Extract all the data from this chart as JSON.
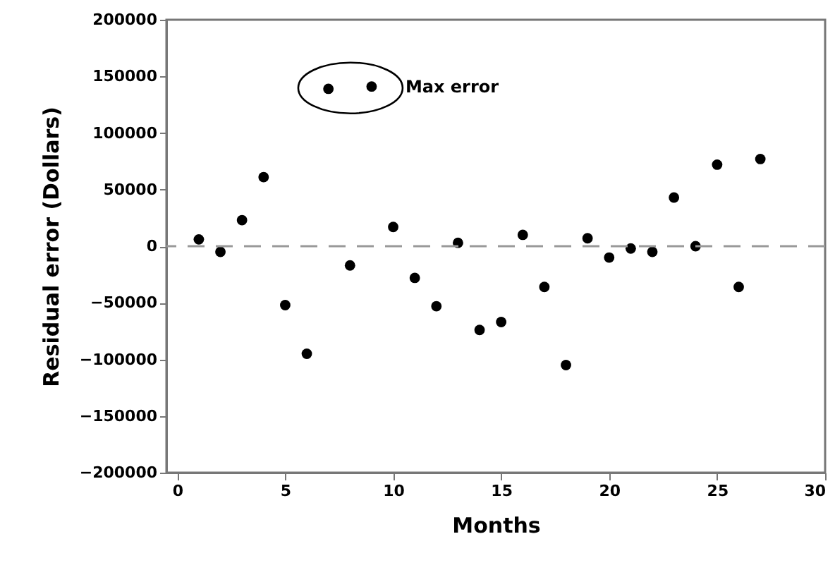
{
  "chart_data": {
    "type": "scatter",
    "xlabel": "Months",
    "ylabel": "Residual error (Dollars)",
    "x": [
      1,
      2,
      3,
      4,
      5,
      6,
      7,
      8,
      9,
      10,
      11,
      12,
      13,
      14,
      15,
      16,
      17,
      18,
      19,
      20,
      21,
      22,
      23,
      24,
      25,
      26,
      27
    ],
    "series": [
      {
        "color": "#000000",
        "values": [
          6000,
          -5000,
          23000,
          61000,
          -52000,
          -95000,
          139000,
          -17000,
          141000,
          17000,
          -28000,
          -53000,
          3000,
          -74000,
          -67000,
          10000,
          -36000,
          -105000,
          7000,
          -10000,
          -2000,
          -5000,
          43000,
          0,
          72000,
          -36000,
          77000
        ]
      }
    ],
    "xlim": [
      -0.5,
      30
    ],
    "xticks": [
      0,
      5,
      10,
      15,
      20,
      25,
      30
    ],
    "ylim": [
      -200000,
      200000
    ],
    "yticks": [
      -200000,
      -150000,
      -100000,
      -50000,
      0,
      50000,
      100000,
      150000,
      200000
    ],
    "ref_lines": [
      {
        "axis": "y",
        "value": 0,
        "color": "#999999",
        "line_style": "dashed"
      }
    ],
    "annotations": [
      {
        "text": "Max error",
        "x": 9,
        "y": 141000
      }
    ],
    "marker": "circle",
    "grid": false
  }
}
